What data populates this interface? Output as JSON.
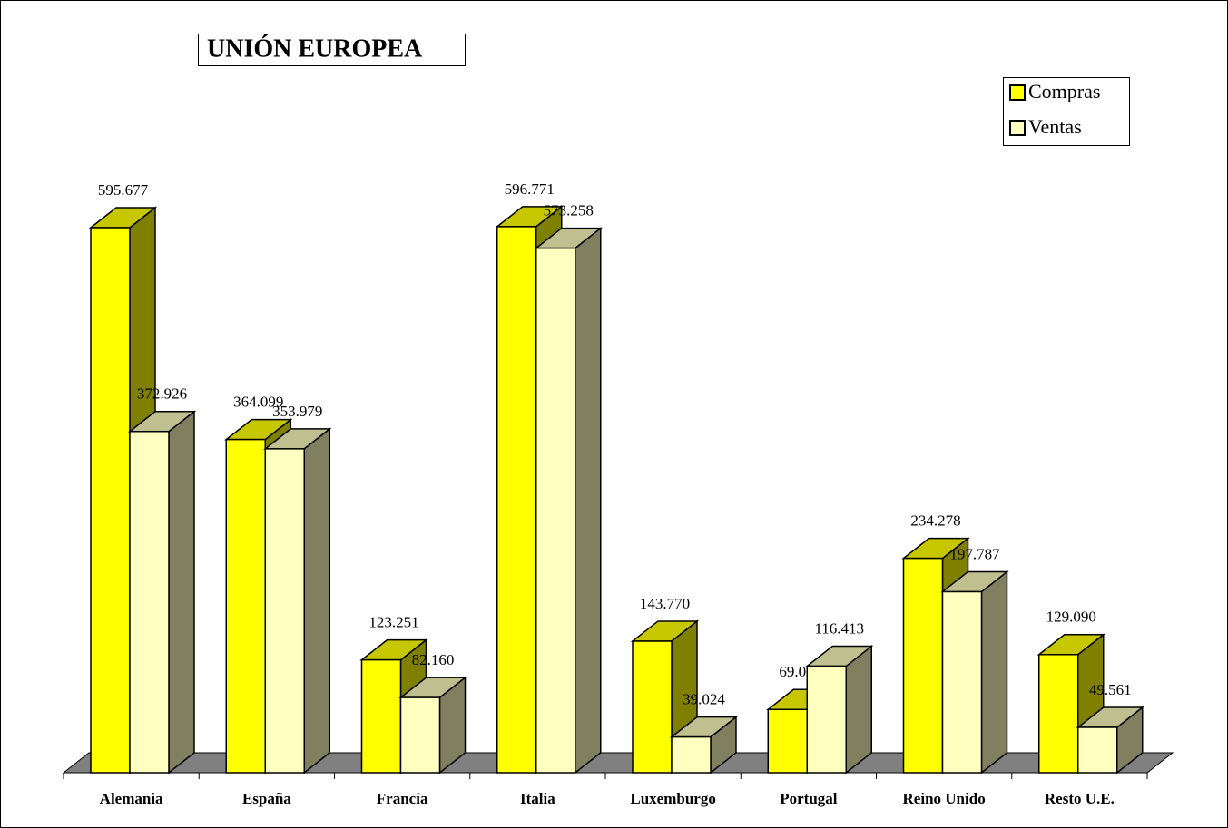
{
  "chart_data": {
    "type": "bar3d",
    "title": "UNIÓN EUROPEA",
    "categories": [
      "Alemania",
      "España",
      "Francia",
      "Italia",
      "Luxemburgo",
      "Portugal",
      "Reino Unido",
      "Resto U.E."
    ],
    "series": [
      {
        "name": "Compras",
        "color": "#ffff00",
        "values": [
          595677,
          364099,
          123251,
          596771,
          143770,
          69092,
          234278,
          129090
        ],
        "value_labels": [
          "595.677",
          "364.099",
          "123.251",
          "596.771",
          "143.770",
          "69.092",
          "234.278",
          "129.090"
        ]
      },
      {
        "name": "Ventas",
        "color": "#ffffc0",
        "values": [
          372926,
          353979,
          82160,
          573258,
          39024,
          116413,
          197787,
          49561
        ],
        "value_labels": [
          "372.926",
          "353.979",
          "82.160",
          "573.258",
          "39.024",
          "116.413",
          "197.787",
          "49.561"
        ]
      }
    ],
    "legend": "top-right"
  }
}
